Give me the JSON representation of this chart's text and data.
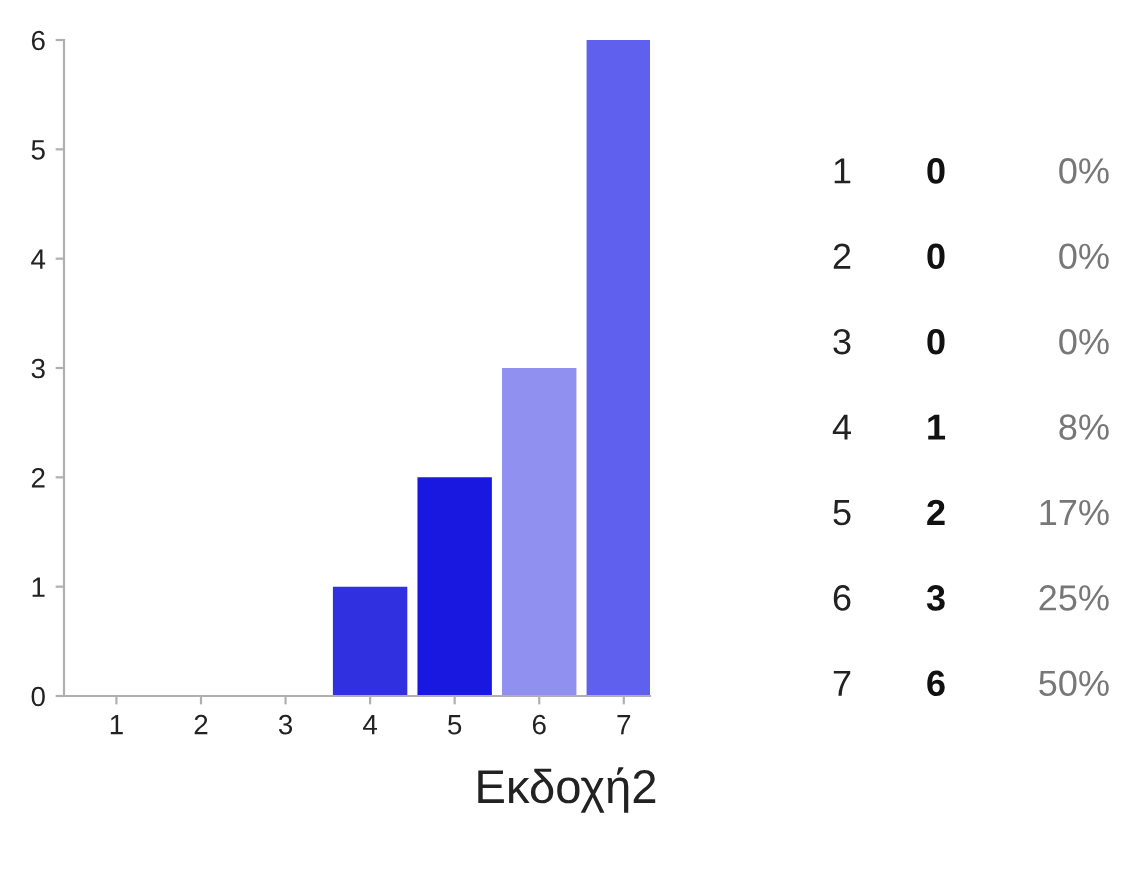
{
  "chart_data": {
    "type": "bar",
    "title": "Εκδοχή2",
    "categories": [
      "1",
      "2",
      "3",
      "4",
      "5",
      "6",
      "7"
    ],
    "values": [
      0,
      0,
      0,
      1,
      2,
      3,
      6
    ],
    "colors": [
      "#3030e0",
      "#1818e0",
      "#9090f0",
      "#3030e0",
      "#1818e0",
      "#9090f0",
      "#6060ee"
    ],
    "ylim": [
      0,
      6
    ],
    "yticks": [
      0,
      1,
      2,
      3,
      4,
      5,
      6
    ],
    "grid": false,
    "annotations": [
      "0",
      "0",
      "0",
      "1",
      "2",
      "3",
      "6",
      "0%",
      "0%",
      "0%",
      "8%",
      "17%",
      "25%",
      "50%"
    ]
  }
}
